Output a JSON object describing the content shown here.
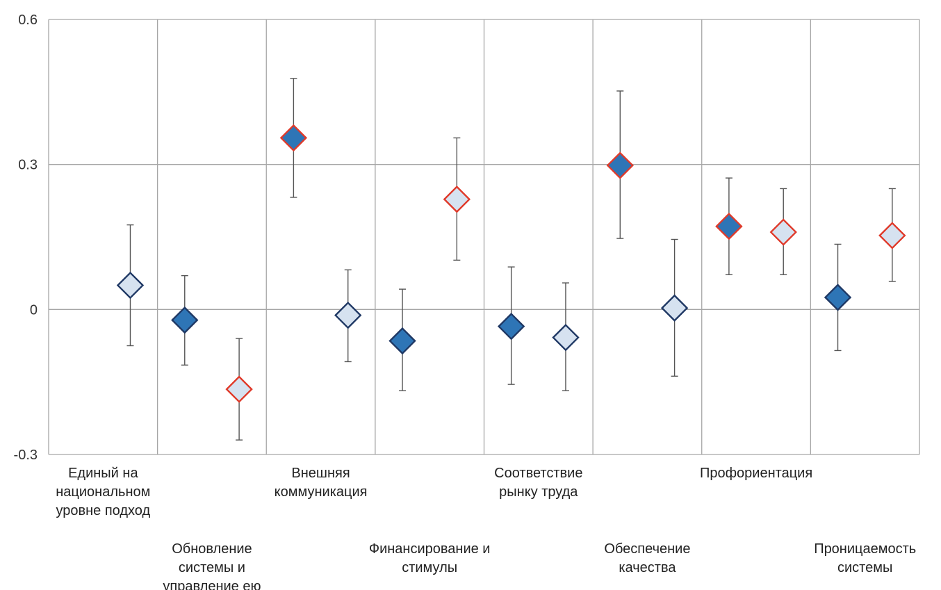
{
  "chart_data": {
    "type": "scatter",
    "title": "",
    "xlabel": "",
    "ylabel": "",
    "ylim": [
      -0.3,
      0.6
    ],
    "yticks": [
      {
        "value": 0.6,
        "label": "0.6"
      },
      {
        "value": 0.3,
        "label": "0.3"
      },
      {
        "value": 0,
        "label": "0"
      },
      {
        "value": -0.3,
        "label": "-0.3"
      }
    ],
    "grid": true,
    "legend": "none",
    "colors": {
      "dark_fill": "#2e75b6",
      "light_fill": "#d6e2f0",
      "dark_stroke": "#1f3864",
      "highlight_stroke": "#e03a2a",
      "error_bar": "#555555",
      "grid": "#a6a6a6"
    },
    "categories": [
      {
        "label_lines": [
          "Единый на",
          "национальном",
          "уровне подход"
        ],
        "points": [
          {
            "y": 0.05,
            "low": -0.075,
            "high": 0.175,
            "fill": "light",
            "outline": "dark"
          }
        ]
      },
      {
        "label_lines": [
          "Обновление",
          "системы и",
          "управление ею"
        ],
        "points": [
          {
            "y": -0.022,
            "low": -0.115,
            "high": 0.07,
            "fill": "dark",
            "outline": "dark"
          },
          {
            "y": -0.165,
            "low": -0.27,
            "high": -0.06,
            "fill": "light",
            "outline": "red"
          }
        ]
      },
      {
        "label_lines": [
          "Внешняя",
          "коммуникация"
        ],
        "points": [
          {
            "y": 0.355,
            "low": 0.232,
            "high": 0.478,
            "fill": "dark",
            "outline": "red"
          },
          {
            "y": -0.012,
            "low": -0.108,
            "high": 0.082,
            "fill": "light",
            "outline": "dark"
          }
        ]
      },
      {
        "label_lines": [
          "Финансирование и",
          "стимулы"
        ],
        "points": [
          {
            "y": -0.065,
            "low": -0.168,
            "high": 0.042,
            "fill": "dark",
            "outline": "dark"
          },
          {
            "y": 0.228,
            "low": 0.102,
            "high": 0.355,
            "fill": "light",
            "outline": "red"
          }
        ]
      },
      {
        "label_lines": [
          "Соответствие",
          "рынку труда"
        ],
        "points": [
          {
            "y": -0.035,
            "low": -0.155,
            "high": 0.088,
            "fill": "dark",
            "outline": "dark"
          },
          {
            "y": -0.058,
            "low": -0.168,
            "high": 0.055,
            "fill": "light",
            "outline": "dark"
          }
        ]
      },
      {
        "label_lines": [
          "Обеспечение",
          "качества"
        ],
        "points": [
          {
            "y": 0.298,
            "low": 0.147,
            "high": 0.452,
            "fill": "dark",
            "outline": "red"
          },
          {
            "y": 0.003,
            "low": -0.138,
            "high": 0.145,
            "fill": "light",
            "outline": "dark"
          }
        ]
      },
      {
        "label_lines": [
          "Профориентация"
        ],
        "points": [
          {
            "y": 0.172,
            "low": 0.072,
            "high": 0.272,
            "fill": "dark",
            "outline": "red"
          },
          {
            "y": 0.16,
            "low": 0.072,
            "high": 0.25,
            "fill": "light",
            "outline": "red"
          }
        ]
      },
      {
        "label_lines": [
          "Проницаемость",
          "системы"
        ],
        "points": [
          {
            "y": 0.025,
            "low": -0.085,
            "high": 0.135,
            "fill": "dark",
            "outline": "dark"
          },
          {
            "y": 0.153,
            "low": 0.058,
            "high": 0.25,
            "fill": "light",
            "outline": "red"
          }
        ]
      }
    ]
  }
}
